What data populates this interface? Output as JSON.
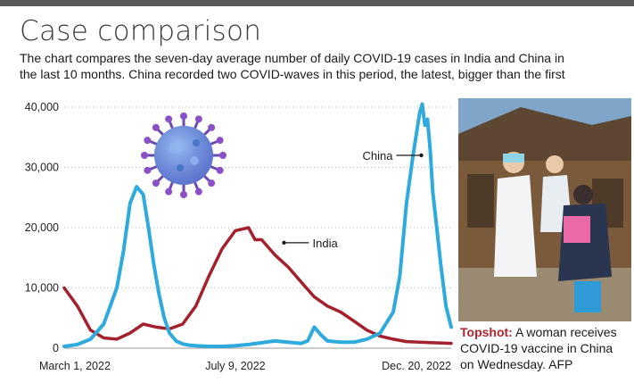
{
  "header": {
    "title": "Case comparison",
    "subtitle_line1": "The chart compares the seven-day average number of daily COVID-19 cases in India and China in",
    "subtitle_line2": "the last 10 months. China recorded two COVID-waves in this period, the latest, bigger than the first"
  },
  "caption": {
    "tag": "Topshot:",
    "text_line1": "A woman receives",
    "text_line2": "COVID-19 vaccine in China",
    "text_line3": "on Wednesday.",
    "credit": "AFP"
  },
  "icons": {
    "virus": "virus-illustration-icon",
    "photo": "vaccination-photo"
  },
  "chart_data": {
    "type": "line",
    "ylim": [
      0,
      40000
    ],
    "xlim": [
      0,
      294
    ],
    "yticks": [
      0,
      10000,
      20000,
      30000,
      40000
    ],
    "ytick_labels": [
      "0",
      "10,000",
      "20,000",
      "30,000",
      "40,000"
    ],
    "grid": "horizontal dotted",
    "xtick_labels": [
      {
        "x": 0,
        "label": "March 1, 2022"
      },
      {
        "x": 130,
        "label": "July 9, 2022"
      },
      {
        "x": 294,
        "label": "Dec. 20, 2022"
      }
    ],
    "series": [
      {
        "name": "China",
        "color": "#2eaadc",
        "x": [
          0,
          10,
          20,
          30,
          40,
          45,
          50,
          55,
          60,
          64,
          68,
          72,
          76,
          80,
          85,
          90,
          95,
          100,
          110,
          120,
          130,
          140,
          150,
          160,
          170,
          180,
          185,
          190,
          195,
          200,
          210,
          220,
          230,
          240,
          250,
          255,
          260,
          265,
          270,
          272,
          274,
          276,
          278,
          280,
          283,
          286,
          290,
          294
        ],
        "values": [
          300,
          600,
          1500,
          4000,
          10000,
          16000,
          24000,
          26800,
          25500,
          20000,
          14000,
          9000,
          5000,
          2500,
          1200,
          700,
          500,
          400,
          300,
          300,
          400,
          600,
          900,
          1200,
          1000,
          800,
          1200,
          3500,
          2200,
          1200,
          1000,
          1000,
          1500,
          2500,
          6000,
          12000,
          24000,
          32000,
          39000,
          40500,
          37000,
          38000,
          33000,
          26000,
          20000,
          14000,
          7000,
          3500
        ]
      },
      {
        "name": "India",
        "color": "#a3202c",
        "x": [
          0,
          10,
          20,
          30,
          40,
          50,
          60,
          70,
          80,
          90,
          100,
          110,
          120,
          130,
          140,
          145,
          150,
          160,
          170,
          180,
          190,
          200,
          210,
          220,
          230,
          240,
          250,
          260,
          270,
          280,
          294
        ],
        "values": [
          10000,
          7000,
          3000,
          1700,
          1500,
          2500,
          4000,
          3500,
          3200,
          4000,
          7000,
          12000,
          16500,
          19500,
          20000,
          18000,
          18000,
          15500,
          13500,
          11000,
          8500,
          7000,
          6000,
          4500,
          3000,
          2000,
          1500,
          1100,
          1000,
          900,
          800
        ]
      }
    ],
    "annotations": [
      {
        "text": "China",
        "series": "China",
        "at_x": 275
      },
      {
        "text": "India",
        "series": "India",
        "at_x": 160
      }
    ]
  }
}
